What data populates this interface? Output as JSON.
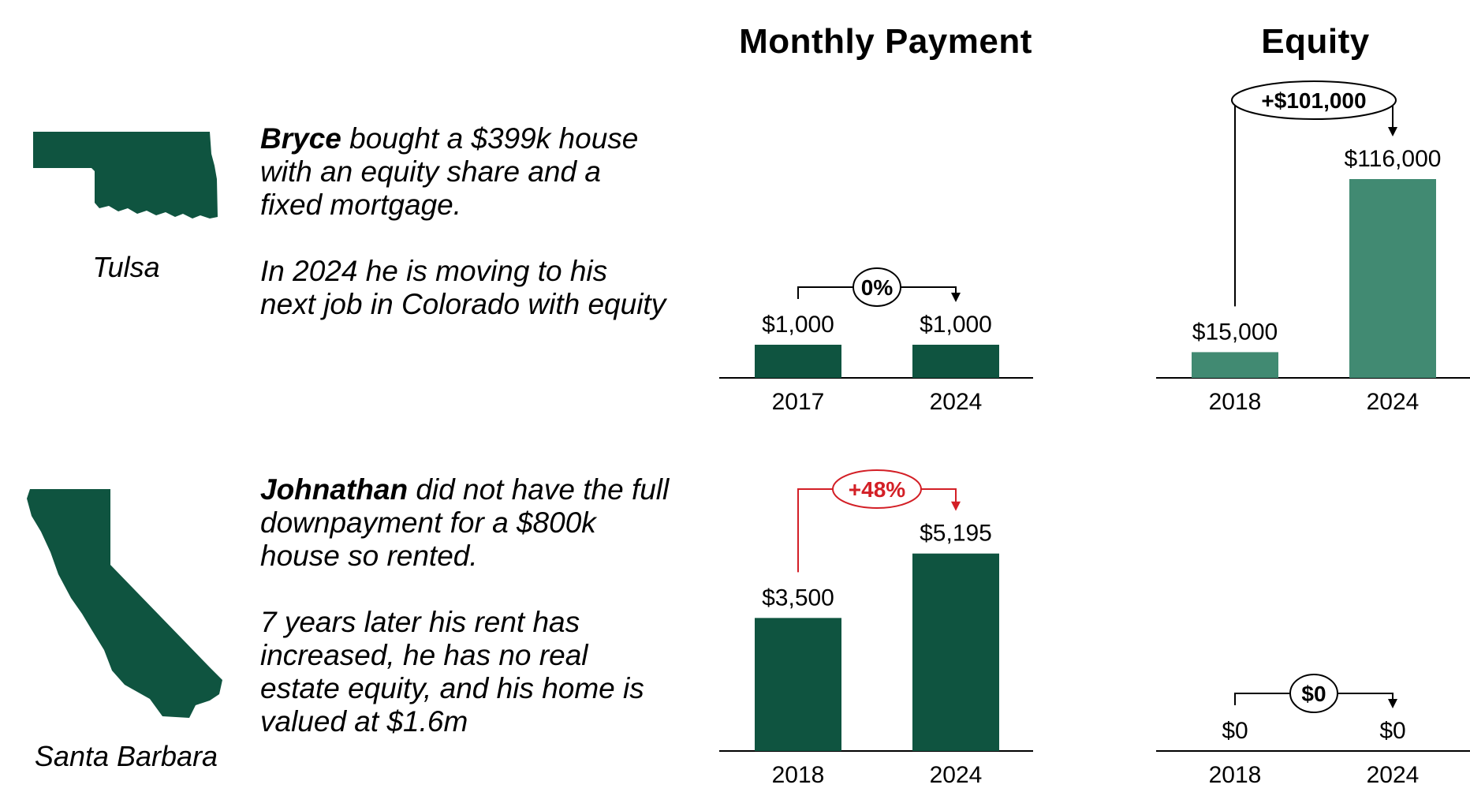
{
  "headings": {
    "payment": "Monthly Payment",
    "equity": "Equity"
  },
  "colors": {
    "dark_green": "#0f5440",
    "light_green": "#418a72",
    "increase_red": "#d31f26",
    "neutral": "#000000"
  },
  "profiles": [
    {
      "map_icon": "oklahoma-map-icon",
      "city": "Tulsa",
      "name": "Bryce",
      "line1": " bought a $399k house with an equity share and a fixed mortgage.",
      "line2": "In 2024 he is moving to his next job in Colorado with equity"
    },
    {
      "map_icon": "california-map-icon",
      "city": "Santa Barbara",
      "name": "Johnathan",
      "line1": " did not have the full downpayment for a $800k house so rented.",
      "line2": "7 years later his rent has increased, he has no real estate equity, and his home is valued at $1.6m"
    }
  ],
  "chart_data": [
    {
      "type": "bar",
      "title": "Monthly Payment",
      "row": "Bryce",
      "categories": [
        "2017",
        "2024"
      ],
      "values": [
        1000,
        1000
      ],
      "value_labels": [
        "$1,000",
        "$1,000"
      ],
      "change_label": "0%",
      "change_color": "#000000",
      "bar_color": "#0f5440",
      "ylim": [
        0,
        5500
      ]
    },
    {
      "type": "bar",
      "title": "Equity",
      "row": "Bryce",
      "categories": [
        "2018",
        "2024"
      ],
      "values": [
        15000,
        116000
      ],
      "value_labels": [
        "$15,000",
        "$116,000"
      ],
      "change_label": "+$101,000",
      "change_color": "#000000",
      "bar_color": "#418a72",
      "ylim": [
        0,
        116000
      ]
    },
    {
      "type": "bar",
      "title": "Monthly Payment",
      "row": "Johnathan",
      "categories": [
        "2018",
        "2024"
      ],
      "values": [
        3500,
        5195
      ],
      "value_labels": [
        "$3,500",
        "$5,195"
      ],
      "change_label": "+48%",
      "change_color": "#d31f26",
      "bar_color": "#0f5440",
      "ylim": [
        0,
        5500
      ]
    },
    {
      "type": "bar",
      "title": "Equity",
      "row": "Johnathan",
      "categories": [
        "2018",
        "2024"
      ],
      "values": [
        0,
        0
      ],
      "value_labels": [
        "$0",
        "$0"
      ],
      "change_label": "$0",
      "change_color": "#000000",
      "bar_color": "#418a72",
      "ylim": [
        0,
        116000
      ]
    }
  ]
}
